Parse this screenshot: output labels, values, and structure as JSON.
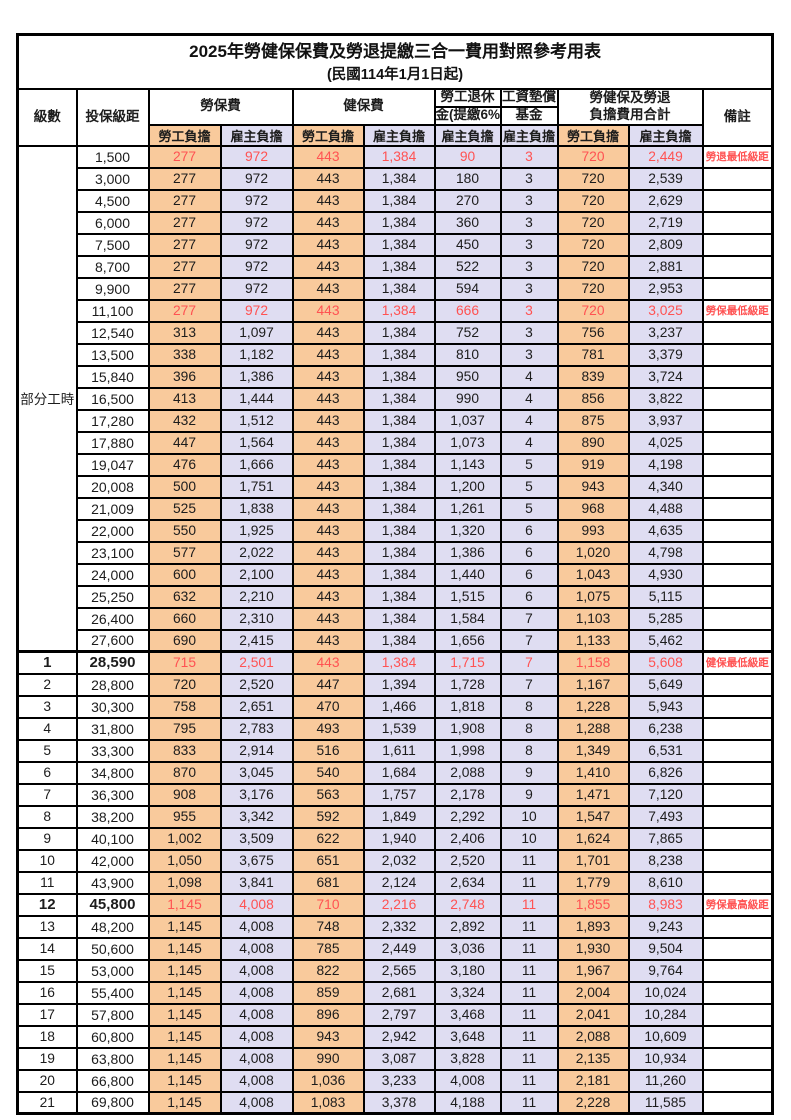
{
  "title": "2025年勞健保保費及勞退提繳三合一費用對照參考用表",
  "subtitle": "(民國114年1月1日起)",
  "colors": {
    "employee_bg": "#F9CA9C",
    "employer_bg": "#DFDDF2",
    "highlight_red": "#FF5252"
  },
  "header": {
    "level": "級數",
    "bracket": "投保級距",
    "labor_fee": "勞保費",
    "health_fee": "健保費",
    "pension_line1": "勞工退休",
    "pension_line2": "金(提繳6%)",
    "fund_line1": "工資墊償",
    "fund_line2": "基金",
    "total_line1": "勞健保及勞退",
    "total_line2": "負擔費用合計",
    "remark": "備註",
    "employee": "勞工負擔",
    "employer": "雇主負擔"
  },
  "part_time_label": "部分工時",
  "table": {
    "rows": [
      {
        "level": {
          "text": "部分工時",
          "rowspan": 23
        },
        "bracket": "1,500",
        "values": [
          "277",
          "972",
          "443",
          "1,384",
          "90",
          "3",
          "720",
          "2,449"
        ],
        "remark": "勞退最低級距",
        "red": true
      },
      {
        "bracket": "3,000",
        "values": [
          "277",
          "972",
          "443",
          "1,384",
          "180",
          "3",
          "720",
          "2,539"
        ]
      },
      {
        "bracket": "4,500",
        "values": [
          "277",
          "972",
          "443",
          "1,384",
          "270",
          "3",
          "720",
          "2,629"
        ]
      },
      {
        "bracket": "6,000",
        "values": [
          "277",
          "972",
          "443",
          "1,384",
          "360",
          "3",
          "720",
          "2,719"
        ]
      },
      {
        "bracket": "7,500",
        "values": [
          "277",
          "972",
          "443",
          "1,384",
          "450",
          "3",
          "720",
          "2,809"
        ]
      },
      {
        "bracket": "8,700",
        "values": [
          "277",
          "972",
          "443",
          "1,384",
          "522",
          "3",
          "720",
          "2,881"
        ]
      },
      {
        "bracket": "9,900",
        "values": [
          "277",
          "972",
          "443",
          "1,384",
          "594",
          "3",
          "720",
          "2,953"
        ]
      },
      {
        "bracket": "11,100",
        "values": [
          "277",
          "972",
          "443",
          "1,384",
          "666",
          "3",
          "720",
          "3,025"
        ],
        "remark": "勞保最低級距",
        "red": true
      },
      {
        "bracket": "12,540",
        "values": [
          "313",
          "1,097",
          "443",
          "1,384",
          "752",
          "3",
          "756",
          "3,237"
        ]
      },
      {
        "bracket": "13,500",
        "values": [
          "338",
          "1,182",
          "443",
          "1,384",
          "810",
          "3",
          "781",
          "3,379"
        ]
      },
      {
        "bracket": "15,840",
        "values": [
          "396",
          "1,386",
          "443",
          "1,384",
          "950",
          "4",
          "839",
          "3,724"
        ]
      },
      {
        "bracket": "16,500",
        "values": [
          "413",
          "1,444",
          "443",
          "1,384",
          "990",
          "4",
          "856",
          "3,822"
        ]
      },
      {
        "bracket": "17,280",
        "values": [
          "432",
          "1,512",
          "443",
          "1,384",
          "1,037",
          "4",
          "875",
          "3,937"
        ]
      },
      {
        "bracket": "17,880",
        "values": [
          "447",
          "1,564",
          "443",
          "1,384",
          "1,073",
          "4",
          "890",
          "4,025"
        ]
      },
      {
        "bracket": "19,047",
        "values": [
          "476",
          "1,666",
          "443",
          "1,384",
          "1,143",
          "5",
          "919",
          "4,198"
        ]
      },
      {
        "bracket": "20,008",
        "values": [
          "500",
          "1,751",
          "443",
          "1,384",
          "1,200",
          "5",
          "943",
          "4,340"
        ]
      },
      {
        "bracket": "21,009",
        "values": [
          "525",
          "1,838",
          "443",
          "1,384",
          "1,261",
          "5",
          "968",
          "4,488"
        ]
      },
      {
        "bracket": "22,000",
        "values": [
          "550",
          "1,925",
          "443",
          "1,384",
          "1,320",
          "6",
          "993",
          "4,635"
        ]
      },
      {
        "bracket": "23,100",
        "values": [
          "577",
          "2,022",
          "443",
          "1,384",
          "1,386",
          "6",
          "1,020",
          "4,798"
        ]
      },
      {
        "bracket": "24,000",
        "values": [
          "600",
          "2,100",
          "443",
          "1,384",
          "1,440",
          "6",
          "1,043",
          "4,930"
        ]
      },
      {
        "bracket": "25,250",
        "values": [
          "632",
          "2,210",
          "443",
          "1,384",
          "1,515",
          "6",
          "1,075",
          "5,115"
        ]
      },
      {
        "bracket": "26,400",
        "values": [
          "660",
          "2,310",
          "443",
          "1,384",
          "1,584",
          "7",
          "1,103",
          "5,285"
        ]
      },
      {
        "bracket": "27,600",
        "values": [
          "690",
          "2,415",
          "443",
          "1,384",
          "1,656",
          "7",
          "1,133",
          "5,462"
        ]
      },
      {
        "level": {
          "text": "1"
        },
        "bracket": "28,590",
        "values": [
          "715",
          "2,501",
          "443",
          "1,384",
          "1,715",
          "7",
          "1,158",
          "5,608"
        ],
        "remark": "健保最低級距",
        "red": true,
        "bold": true,
        "thick_top": true
      },
      {
        "level": {
          "text": "2"
        },
        "bracket": "28,800",
        "values": [
          "720",
          "2,520",
          "447",
          "1,394",
          "1,728",
          "7",
          "1,167",
          "5,649"
        ]
      },
      {
        "level": {
          "text": "3"
        },
        "bracket": "30,300",
        "values": [
          "758",
          "2,651",
          "470",
          "1,466",
          "1,818",
          "8",
          "1,228",
          "5,943"
        ]
      },
      {
        "level": {
          "text": "4"
        },
        "bracket": "31,800",
        "values": [
          "795",
          "2,783",
          "493",
          "1,539",
          "1,908",
          "8",
          "1,288",
          "6,238"
        ]
      },
      {
        "level": {
          "text": "5"
        },
        "bracket": "33,300",
        "values": [
          "833",
          "2,914",
          "516",
          "1,611",
          "1,998",
          "8",
          "1,349",
          "6,531"
        ]
      },
      {
        "level": {
          "text": "6"
        },
        "bracket": "34,800",
        "values": [
          "870",
          "3,045",
          "540",
          "1,684",
          "2,088",
          "9",
          "1,410",
          "6,826"
        ]
      },
      {
        "level": {
          "text": "7"
        },
        "bracket": "36,300",
        "values": [
          "908",
          "3,176",
          "563",
          "1,757",
          "2,178",
          "9",
          "1,471",
          "7,120"
        ]
      },
      {
        "level": {
          "text": "8"
        },
        "bracket": "38,200",
        "values": [
          "955",
          "3,342",
          "592",
          "1,849",
          "2,292",
          "10",
          "1,547",
          "7,493"
        ]
      },
      {
        "level": {
          "text": "9"
        },
        "bracket": "40,100",
        "values": [
          "1,002",
          "3,509",
          "622",
          "1,940",
          "2,406",
          "10",
          "1,624",
          "7,865"
        ]
      },
      {
        "level": {
          "text": "10"
        },
        "bracket": "42,000",
        "values": [
          "1,050",
          "3,675",
          "651",
          "2,032",
          "2,520",
          "11",
          "1,701",
          "8,238"
        ]
      },
      {
        "level": {
          "text": "11"
        },
        "bracket": "43,900",
        "values": [
          "1,098",
          "3,841",
          "681",
          "2,124",
          "2,634",
          "11",
          "1,779",
          "8,610"
        ]
      },
      {
        "level": {
          "text": "12"
        },
        "bracket": "45,800",
        "values": [
          "1,145",
          "4,008",
          "710",
          "2,216",
          "2,748",
          "11",
          "1,855",
          "8,983"
        ],
        "remark": "勞保最高級距",
        "red": true,
        "bold": true
      },
      {
        "level": {
          "text": "13"
        },
        "bracket": "48,200",
        "values": [
          "1,145",
          "4,008",
          "748",
          "2,332",
          "2,892",
          "11",
          "1,893",
          "9,243"
        ]
      },
      {
        "level": {
          "text": "14"
        },
        "bracket": "50,600",
        "values": [
          "1,145",
          "4,008",
          "785",
          "2,449",
          "3,036",
          "11",
          "1,930",
          "9,504"
        ]
      },
      {
        "level": {
          "text": "15"
        },
        "bracket": "53,000",
        "values": [
          "1,145",
          "4,008",
          "822",
          "2,565",
          "3,180",
          "11",
          "1,967",
          "9,764"
        ]
      },
      {
        "level": {
          "text": "16"
        },
        "bracket": "55,400",
        "values": [
          "1,145",
          "4,008",
          "859",
          "2,681",
          "3,324",
          "11",
          "2,004",
          "10,024"
        ]
      },
      {
        "level": {
          "text": "17"
        },
        "bracket": "57,800",
        "values": [
          "1,145",
          "4,008",
          "896",
          "2,797",
          "3,468",
          "11",
          "2,041",
          "10,284"
        ]
      },
      {
        "level": {
          "text": "18"
        },
        "bracket": "60,800",
        "values": [
          "1,145",
          "4,008",
          "943",
          "2,942",
          "3,648",
          "11",
          "2,088",
          "10,609"
        ]
      },
      {
        "level": {
          "text": "19"
        },
        "bracket": "63,800",
        "values": [
          "1,145",
          "4,008",
          "990",
          "3,087",
          "3,828",
          "11",
          "2,135",
          "10,934"
        ]
      },
      {
        "level": {
          "text": "20"
        },
        "bracket": "66,800",
        "values": [
          "1,145",
          "4,008",
          "1,036",
          "3,233",
          "4,008",
          "11",
          "2,181",
          "11,260"
        ]
      },
      {
        "level": {
          "text": "21"
        },
        "bracket": "69,800",
        "values": [
          "1,145",
          "4,008",
          "1,083",
          "3,378",
          "4,188",
          "11",
          "2,228",
          "11,585"
        ]
      }
    ]
  }
}
